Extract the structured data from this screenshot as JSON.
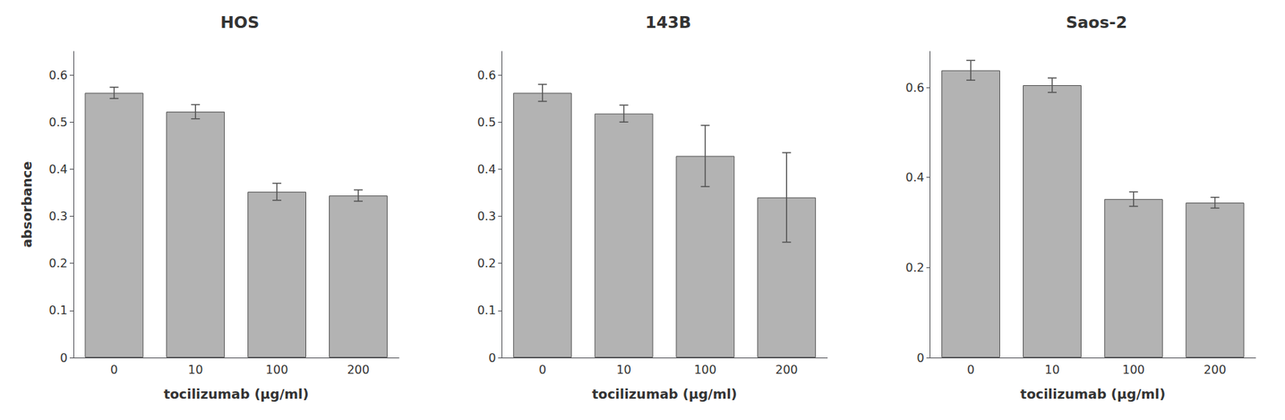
{
  "chart_data": [
    {
      "type": "bar",
      "title": "HOS",
      "xlabel": "tocilizumab (μg/ml)",
      "ylabel": "absorbance",
      "categories": [
        "0",
        "10",
        "100",
        "200"
      ],
      "values": [
        0.562,
        0.522,
        0.352,
        0.344
      ],
      "errors": [
        0.012,
        0.015,
        0.018,
        0.012
      ],
      "color": "#b3b3b3",
      "ylim": [
        0,
        0.65
      ],
      "yticks": [
        0,
        0.1,
        0.2,
        0.3,
        0.4,
        0.5,
        0.6
      ],
      "grid": false
    },
    {
      "type": "bar",
      "title": "143B",
      "xlabel": "tocilizumab (μg/ml)",
      "categories": [
        "0",
        "10",
        "100",
        "200"
      ],
      "values": [
        0.562,
        0.518,
        0.428,
        0.34
      ],
      "errors": [
        0.018,
        0.018,
        0.065,
        0.095
      ],
      "color": "#b3b3b3",
      "ylim": [
        0,
        0.65
      ],
      "yticks": [
        0,
        0.1,
        0.2,
        0.3,
        0.4,
        0.5,
        0.6
      ],
      "grid": false
    },
    {
      "type": "bar",
      "title": "Saos-2",
      "xlabel": "tocilizumab (μg/ml)",
      "categories": [
        "0",
        "10",
        "100",
        "200"
      ],
      "values": [
        0.638,
        0.605,
        0.352,
        0.344
      ],
      "errors": [
        0.022,
        0.016,
        0.016,
        0.012
      ],
      "color": "#b3b3b3",
      "ylim": [
        0,
        0.68
      ],
      "yticks": [
        0,
        0.2,
        0.4,
        0.6
      ],
      "grid": false
    }
  ]
}
